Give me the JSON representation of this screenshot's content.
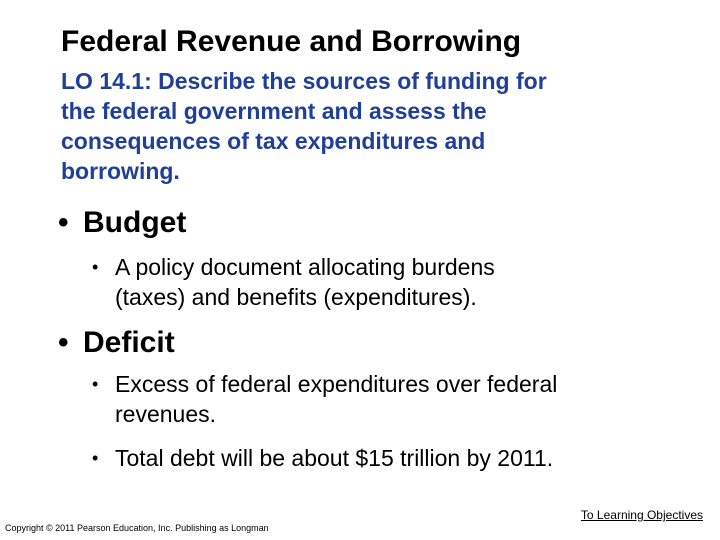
{
  "title": "Federal Revenue and Borrowing",
  "subtitle": "LO 14.1: Describe the sources of funding for\nthe federal government and assess the\nconsequences of tax expenditures and\nborrowing.",
  "bullet_char": "•",
  "budget": {
    "heading": "Budget",
    "items": [
      "A policy document allocating burdens\n(taxes) and benefits (expenditures)."
    ]
  },
  "deficit": {
    "heading": "Deficit",
    "items": [
      "Excess of federal expenditures over federal\nrevenues.",
      "Total debt will be about $15 trillion by 2011."
    ]
  },
  "footer": {
    "link_label": "To Learning Objectives",
    "copyright": "Copyright © 2011 Pearson Education, Inc. Publishing as Longman"
  }
}
